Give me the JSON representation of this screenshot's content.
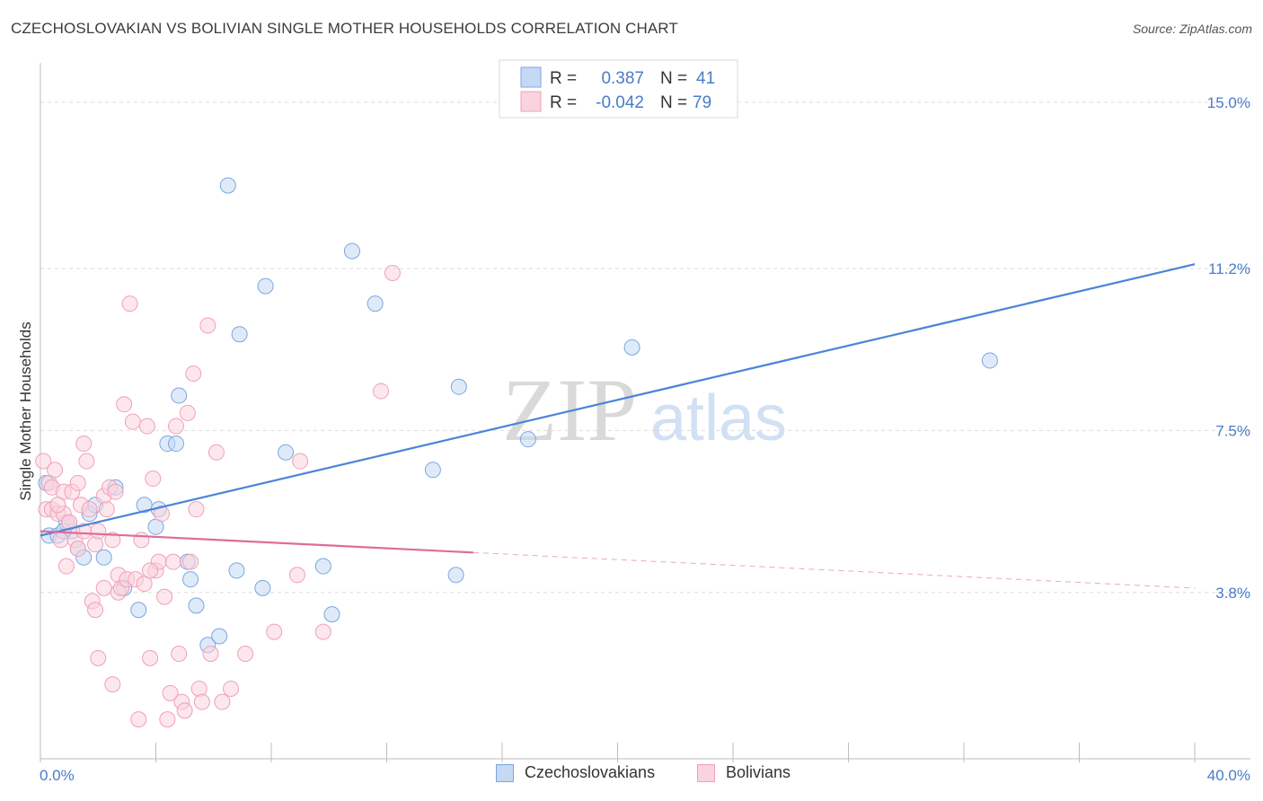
{
  "header": {
    "title": "CZECHOSLOVAKIAN VS BOLIVIAN SINGLE MOTHER HOUSEHOLDS CORRELATION CHART",
    "source": "Source: ZipAtlas.com"
  },
  "watermark": {
    "zip": "ZIP",
    "atlas": "atlas"
  },
  "legend_top": {
    "rows": [
      {
        "r_label": "R =",
        "r_value": "0.387",
        "n_label": "N =",
        "n_value": "41",
        "color": "#7aa6e0",
        "fill": "#c5d9f4"
      },
      {
        "r_label": "R =",
        "r_value": "-0.042",
        "n_label": "N =",
        "n_value": "79",
        "color": "#f0a0b8",
        "fill": "#fad3df"
      }
    ]
  },
  "legend_bottom": {
    "items": [
      {
        "label": "Czechoslovakians",
        "color": "#7aa6e0",
        "fill": "#c5d9f4"
      },
      {
        "label": "Bolivians",
        "color": "#f0a0b8",
        "fill": "#fad3df"
      }
    ]
  },
  "chart_data": {
    "type": "scatter",
    "title": "CZECHOSLOVAKIAN VS BOLIVIAN SINGLE MOTHER HOUSEHOLDS CORRELATION CHART",
    "xlabel": "",
    "ylabel": "Single Mother Households",
    "xlim": [
      0,
      40
    ],
    "ylim": [
      0,
      15.9
    ],
    "x_tick_labels": [
      "0.0%",
      "40.0%"
    ],
    "y_ticks": [
      3.8,
      7.5,
      11.2,
      15.0
    ],
    "y_tick_labels": [
      "3.8%",
      "7.5%",
      "11.2%",
      "15.0%"
    ],
    "series": [
      {
        "name": "Czechoslovakians",
        "color": "#4a85d8",
        "fill": "#c5d9f4",
        "stroke": "#7aa6e0",
        "r": 0.387,
        "n": 41,
        "trend": {
          "x0": 0,
          "y0": 5.1,
          "x1": 40,
          "y1": 11.3,
          "solid_to": 40
        },
        "points": [
          [
            0.2,
            6.3
          ],
          [
            0.3,
            5.1
          ],
          [
            0.6,
            5.1
          ],
          [
            0.9,
            5.4
          ],
          [
            1.1,
            5.2
          ],
          [
            1.3,
            4.8
          ],
          [
            1.5,
            4.6
          ],
          [
            1.7,
            5.6
          ],
          [
            1.9,
            5.8
          ],
          [
            2.6,
            6.2
          ],
          [
            2.9,
            3.9
          ],
          [
            3.4,
            3.4
          ],
          [
            3.6,
            5.8
          ],
          [
            4.0,
            5.3
          ],
          [
            4.1,
            5.7
          ],
          [
            4.4,
            7.2
          ],
          [
            4.7,
            7.2
          ],
          [
            4.8,
            8.3
          ],
          [
            5.1,
            4.5
          ],
          [
            5.2,
            4.1
          ],
          [
            5.4,
            3.5
          ],
          [
            5.8,
            2.6
          ],
          [
            6.2,
            2.8
          ],
          [
            6.5,
            13.1
          ],
          [
            6.8,
            4.3
          ],
          [
            6.9,
            9.7
          ],
          [
            7.7,
            3.9
          ],
          [
            7.8,
            10.8
          ],
          [
            8.5,
            7.0
          ],
          [
            9.8,
            4.4
          ],
          [
            10.1,
            3.3
          ],
          [
            10.8,
            11.6
          ],
          [
            11.6,
            10.4
          ],
          [
            13.6,
            6.6
          ],
          [
            14.4,
            4.2
          ],
          [
            14.5,
            8.5
          ],
          [
            16.9,
            7.3
          ],
          [
            20.5,
            9.4
          ],
          [
            32.9,
            9.1
          ],
          [
            0.8,
            5.2
          ],
          [
            2.2,
            4.6
          ]
        ]
      },
      {
        "name": "Bolivians",
        "color": "#e06c98",
        "fill": "#fad3df",
        "stroke": "#f0a0b8",
        "r": -0.042,
        "n": 79,
        "trend": {
          "x0": 0,
          "y0": 5.2,
          "x1": 40,
          "y1": 3.9,
          "solid_to": 15
        },
        "points": [
          [
            0.1,
            6.8
          ],
          [
            0.2,
            5.7
          ],
          [
            0.3,
            6.3
          ],
          [
            0.4,
            6.2
          ],
          [
            0.4,
            5.7
          ],
          [
            0.5,
            6.6
          ],
          [
            0.6,
            5.6
          ],
          [
            0.7,
            5.0
          ],
          [
            0.8,
            6.1
          ],
          [
            0.8,
            5.6
          ],
          [
            0.9,
            4.4
          ],
          [
            1.0,
            5.4
          ],
          [
            1.1,
            6.1
          ],
          [
            1.2,
            5.0
          ],
          [
            1.3,
            4.8
          ],
          [
            1.3,
            6.3
          ],
          [
            1.4,
            5.8
          ],
          [
            1.5,
            7.2
          ],
          [
            1.6,
            6.8
          ],
          [
            1.7,
            5.7
          ],
          [
            1.8,
            3.6
          ],
          [
            1.9,
            3.4
          ],
          [
            1.9,
            4.9
          ],
          [
            2.0,
            5.2
          ],
          [
            2.2,
            6.0
          ],
          [
            2.3,
            5.7
          ],
          [
            2.4,
            6.2
          ],
          [
            2.5,
            5.0
          ],
          [
            2.6,
            6.1
          ],
          [
            2.7,
            4.2
          ],
          [
            2.7,
            3.8
          ],
          [
            2.8,
            3.9
          ],
          [
            2.9,
            8.1
          ],
          [
            3.0,
            4.1
          ],
          [
            3.1,
            10.4
          ],
          [
            3.2,
            7.7
          ],
          [
            3.3,
            4.1
          ],
          [
            3.5,
            5.0
          ],
          [
            3.6,
            4.0
          ],
          [
            3.7,
            7.6
          ],
          [
            3.8,
            2.3
          ],
          [
            3.9,
            6.4
          ],
          [
            4.0,
            4.3
          ],
          [
            4.1,
            4.5
          ],
          [
            4.2,
            5.6
          ],
          [
            4.3,
            3.7
          ],
          [
            4.4,
            0.9
          ],
          [
            4.5,
            1.5
          ],
          [
            4.6,
            4.5
          ],
          [
            4.7,
            7.6
          ],
          [
            4.8,
            2.4
          ],
          [
            4.9,
            1.3
          ],
          [
            5.0,
            1.1
          ],
          [
            5.1,
            7.9
          ],
          [
            5.2,
            4.5
          ],
          [
            5.3,
            8.8
          ],
          [
            5.4,
            5.7
          ],
          [
            5.5,
            1.6
          ],
          [
            5.6,
            1.3
          ],
          [
            5.8,
            9.9
          ],
          [
            5.9,
            2.4
          ],
          [
            6.1,
            7.0
          ],
          [
            6.3,
            1.3
          ],
          [
            6.6,
            1.6
          ],
          [
            7.1,
            2.4
          ],
          [
            8.1,
            2.9
          ],
          [
            8.9,
            4.2
          ],
          [
            9.0,
            6.8
          ],
          [
            9.8,
            2.9
          ],
          [
            11.8,
            8.4
          ],
          [
            12.2,
            11.1
          ],
          [
            2.0,
            2.3
          ],
          [
            2.5,
            1.7
          ],
          [
            3.4,
            0.9
          ],
          [
            1.0,
            5.4
          ],
          [
            1.5,
            5.2
          ],
          [
            2.2,
            3.9
          ],
          [
            0.6,
            5.8
          ],
          [
            3.8,
            4.3
          ]
        ]
      }
    ]
  }
}
